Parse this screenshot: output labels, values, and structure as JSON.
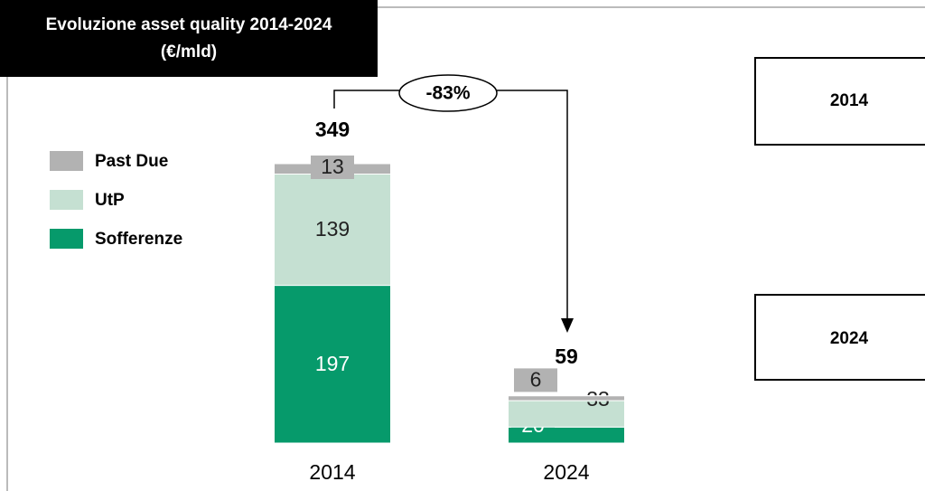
{
  "chart_data": {
    "type": "stacked_bar",
    "title": "Evoluzione asset quality 2014-2024 (€/mld)",
    "categories": [
      "2014",
      "2024"
    ],
    "series": [
      {
        "name": "Sofferenze",
        "color": "#069a6b",
        "values": [
          197,
          20
        ]
      },
      {
        "name": "UtP",
        "color": "#c5e0d2",
        "values": [
          139,
          33
        ]
      },
      {
        "name": "Past Due",
        "color": "#b2b2b2",
        "values": [
          13,
          6
        ]
      }
    ],
    "totals": [
      349,
      59
    ],
    "annotation": "-83%"
  }
}
